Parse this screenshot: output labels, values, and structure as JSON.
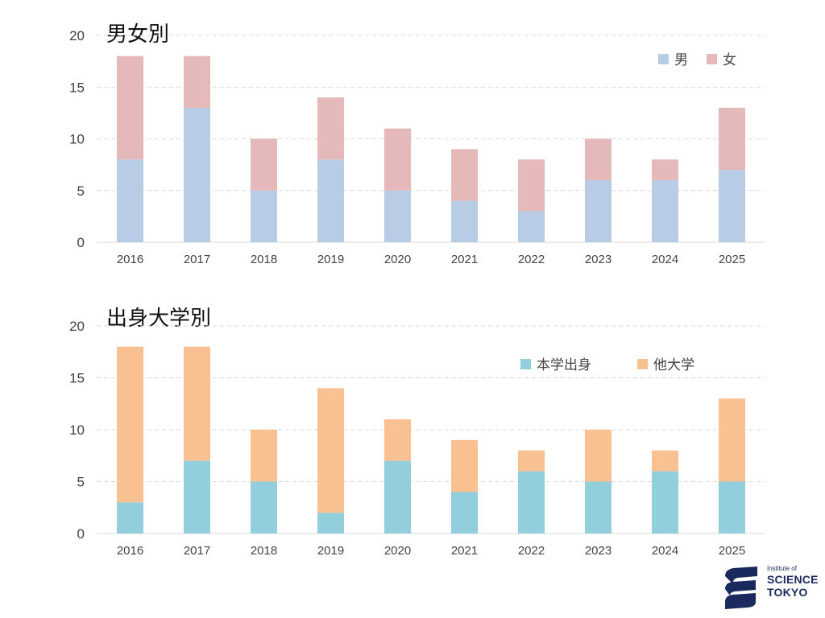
{
  "chart_data": [
    {
      "type": "bar",
      "stacked": true,
      "title": "男女別",
      "categories": [
        "2016",
        "2017",
        "2018",
        "2019",
        "2020",
        "2021",
        "2022",
        "2023",
        "2024",
        "2025"
      ],
      "series": [
        {
          "name": "男",
          "values": [
            8,
            13,
            5,
            8,
            5,
            4,
            3,
            6,
            6,
            7
          ],
          "color": "#b8cde5"
        },
        {
          "name": "女",
          "values": [
            10,
            5,
            5,
            6,
            6,
            5,
            5,
            4,
            2,
            6
          ],
          "color": "#e5b9b9"
        }
      ],
      "ylim": [
        0,
        20
      ],
      "yticks": [
        "0",
        "5",
        "10",
        "15",
        "20"
      ],
      "grid": true,
      "legend_position": "top-right"
    },
    {
      "type": "bar",
      "stacked": true,
      "title": "出身大学別",
      "categories": [
        "2016",
        "2017",
        "2018",
        "2019",
        "2020",
        "2021",
        "2022",
        "2023",
        "2024",
        "2025"
      ],
      "series": [
        {
          "name": "本学出身",
          "values": [
            3,
            7,
            5,
            2,
            7,
            4,
            6,
            5,
            6,
            5
          ],
          "color": "#93cedd"
        },
        {
          "name": "他大学",
          "values": [
            15,
            11,
            5,
            12,
            4,
            5,
            2,
            5,
            2,
            8
          ],
          "color": "#f9c092"
        }
      ],
      "ylim": [
        0,
        20
      ],
      "yticks": [
        "0",
        "5",
        "10",
        "15",
        "20"
      ],
      "grid": true,
      "legend_position": "top-right"
    }
  ],
  "logo": {
    "line1": "Institute of",
    "line2": "SCIENCE",
    "line3": "TOKYO",
    "color": "#1b2a5e"
  }
}
